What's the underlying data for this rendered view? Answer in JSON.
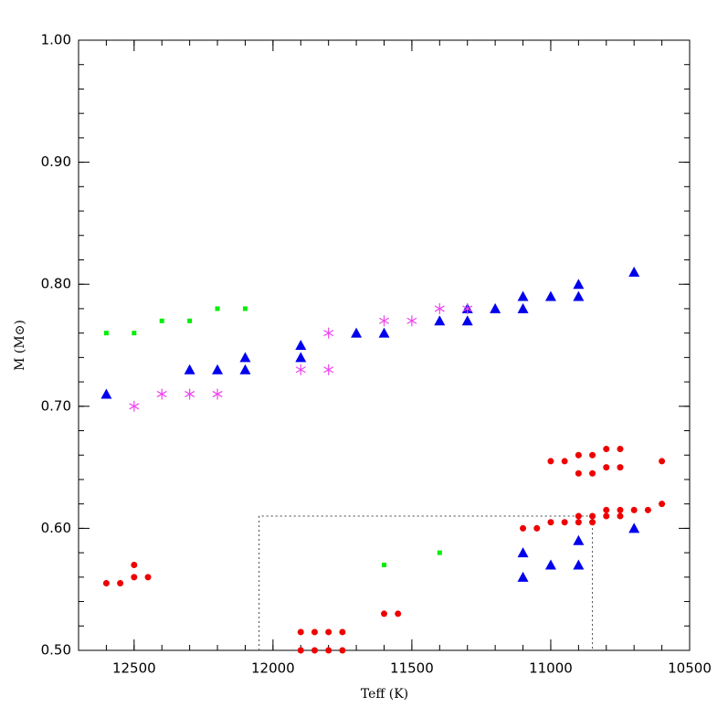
{
  "chart_data": {
    "type": "scatter",
    "x_label": "Teff (K)",
    "y_label": "M (M⊙)",
    "xlim": [
      12700,
      10500
    ],
    "ylim": [
      0.5,
      1.0
    ],
    "xticks": [
      12500,
      12000,
      11500,
      11000,
      10500
    ],
    "yticks": [
      {
        "value": 0.5,
        "label": "0.50"
      },
      {
        "value": 0.6,
        "label": "0.60"
      },
      {
        "value": 0.7,
        "label": "0.70"
      },
      {
        "value": 0.8,
        "label": "0.80"
      },
      {
        "value": 0.9,
        "label": "0.90"
      },
      {
        "value": 1.0,
        "label": "1.00"
      }
    ],
    "box": {
      "xlim": [
        12050,
        10850
      ],
      "ylim": [
        0.5,
        0.61
      ]
    },
    "series": [
      {
        "marker": "square",
        "color": "#00ee00",
        "x": [
          12600,
          12500,
          12400,
          12300,
          12200,
          12100,
          11600,
          11400
        ],
        "values": [
          0.76,
          0.76,
          0.77,
          0.77,
          0.78,
          0.78,
          0.57,
          0.58
        ]
      },
      {
        "marker": "triangle",
        "color": "#0000ee",
        "x": [
          12600,
          12300,
          12200,
          12100,
          12100,
          11900,
          11900,
          11700,
          11600,
          11400,
          11300,
          11300,
          11200,
          11100,
          11100,
          11000,
          10900,
          10900,
          10700,
          11100,
          11100,
          11000,
          10900,
          10900,
          10700
        ],
        "values": [
          0.71,
          0.73,
          0.73,
          0.73,
          0.74,
          0.74,
          0.75,
          0.76,
          0.76,
          0.77,
          0.77,
          0.78,
          0.78,
          0.78,
          0.79,
          0.79,
          0.79,
          0.8,
          0.81,
          0.58,
          0.56,
          0.57,
          0.57,
          0.59,
          0.6
        ]
      },
      {
        "marker": "asterisk",
        "color": "#ee44ee",
        "x": [
          12500,
          12400,
          12300,
          12200,
          11900,
          11800,
          11800,
          11600,
          11500,
          11400,
          11300
        ],
        "values": [
          0.7,
          0.71,
          0.71,
          0.71,
          0.73,
          0.73,
          0.76,
          0.77,
          0.77,
          0.78,
          0.78
        ]
      },
      {
        "marker": "circle",
        "color": "#ee0000",
        "x": [
          12600,
          12550,
          12500,
          12500,
          12450,
          11900,
          11850,
          11800,
          11750,
          11900,
          11850,
          11800,
          11750,
          11600,
          11550,
          11100,
          11050,
          11000,
          10950,
          10900,
          10850,
          10800,
          10750,
          10600,
          10900,
          10850,
          10800,
          10750,
          11000,
          10950,
          10900,
          10850,
          10900,
          10850,
          10800,
          10750,
          10800,
          10750,
          10700,
          10650,
          10600
        ],
        "values": [
          0.555,
          0.555,
          0.57,
          0.56,
          0.56,
          0.515,
          0.515,
          0.515,
          0.515,
          0.5,
          0.5,
          0.5,
          0.5,
          0.53,
          0.53,
          0.6,
          0.6,
          0.655,
          0.655,
          0.66,
          0.66,
          0.665,
          0.665,
          0.655,
          0.645,
          0.645,
          0.65,
          0.65,
          0.605,
          0.605,
          0.605,
          0.605,
          0.61,
          0.61,
          0.61,
          0.61,
          0.615,
          0.615,
          0.615,
          0.615,
          0.62
        ]
      }
    ]
  }
}
